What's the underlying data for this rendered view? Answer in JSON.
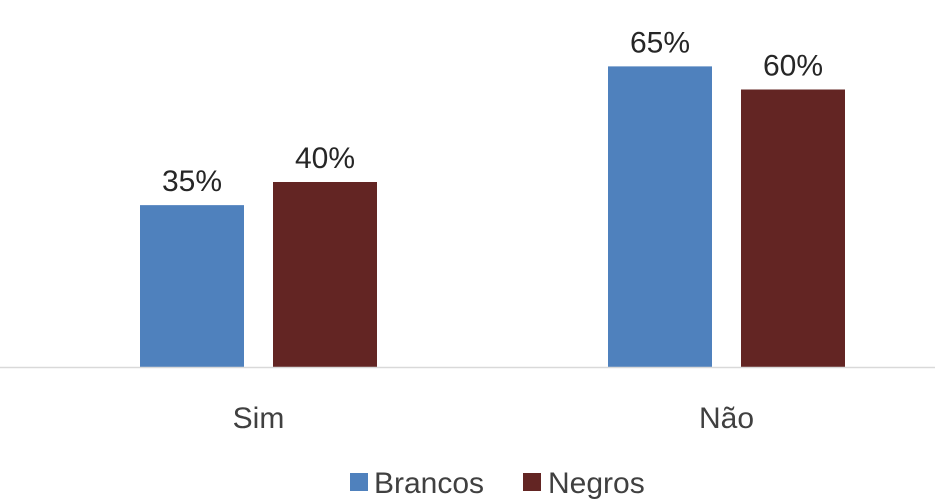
{
  "chart_data": {
    "type": "bar",
    "categories": [
      "Sim",
      "Não"
    ],
    "series": [
      {
        "name": "Brancos",
        "values": [
          35,
          65
        ],
        "color": "#4f81bd"
      },
      {
        "name": "Negros",
        "values": [
          40,
          60
        ],
        "color": "#632523"
      }
    ],
    "value_suffix": "%",
    "ylim": [
      0,
      100
    ],
    "grid": false,
    "legend_position": "bottom",
    "axis_color": "#d9d9d9"
  }
}
